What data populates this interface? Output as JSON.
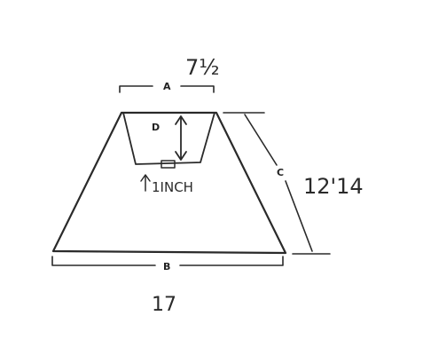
{
  "labels": {
    "a": "A",
    "b": "B",
    "c": "C",
    "d": "D"
  },
  "measurements": {
    "top_width": "7½",
    "bottom_width": "17",
    "slant_height": "12'14",
    "inch_note": "1INCH"
  },
  "colors": {
    "ink": "#2a2a2a",
    "background": "#ffffff"
  }
}
